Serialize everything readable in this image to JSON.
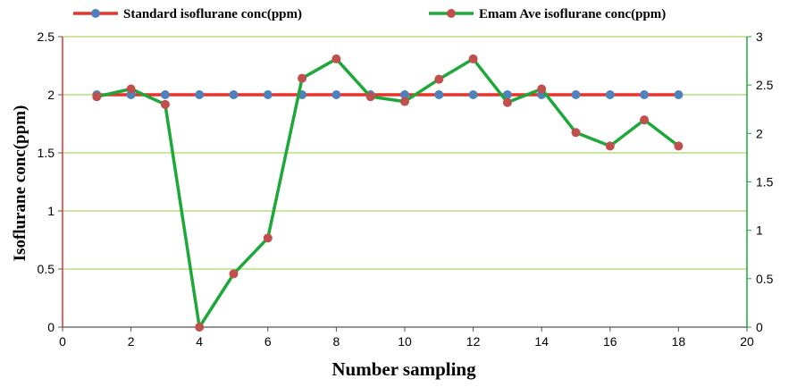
{
  "chart_data": {
    "type": "line",
    "title": "",
    "xlabel": "Number sampling",
    "ylabel": "Isoflurane conc(ppm)",
    "y2label": "",
    "xlim": [
      0,
      20
    ],
    "ylim": [
      0,
      2.5
    ],
    "y2lim": [
      0,
      3
    ],
    "x_ticks": [
      "0",
      "2",
      "4",
      "6",
      "8",
      "10",
      "12",
      "14",
      "16",
      "18",
      "20"
    ],
    "y_ticks": [
      "0",
      "0.5",
      "1",
      "1.5",
      "2",
      "2.5"
    ],
    "y2_ticks": [
      "0",
      "0.5",
      "1",
      "1.5",
      "2",
      "2.5",
      "3"
    ],
    "grid": true,
    "legend_position": "top",
    "series": [
      {
        "name": "Standard isoflurane conc(ppm)",
        "line_color": "#e8322c",
        "marker_color": "#4f81bd",
        "axis": "left",
        "x": [
          1,
          2,
          3,
          4,
          5,
          6,
          7,
          8,
          9,
          10,
          11,
          12,
          13,
          14,
          15,
          16,
          17,
          18
        ],
        "y": [
          2,
          2,
          2,
          2,
          2,
          2,
          2,
          2,
          2,
          2,
          2,
          2,
          2,
          2,
          2,
          2,
          2,
          2
        ]
      },
      {
        "name": "Emam Ave isoflurane conc(ppm)",
        "line_color": "#1fa83a",
        "marker_color": "#c0504d",
        "axis": "right",
        "x": [
          1,
          2,
          3,
          4,
          5,
          6,
          7,
          8,
          9,
          10,
          11,
          12,
          13,
          14,
          15,
          16,
          17,
          18
        ],
        "y": [
          2.38,
          2.46,
          2.3,
          0,
          0.55,
          0.92,
          2.57,
          2.77,
          2.38,
          2.33,
          2.56,
          2.77,
          2.32,
          2.46,
          2.01,
          1.87,
          2.14,
          1.87
        ]
      }
    ]
  }
}
